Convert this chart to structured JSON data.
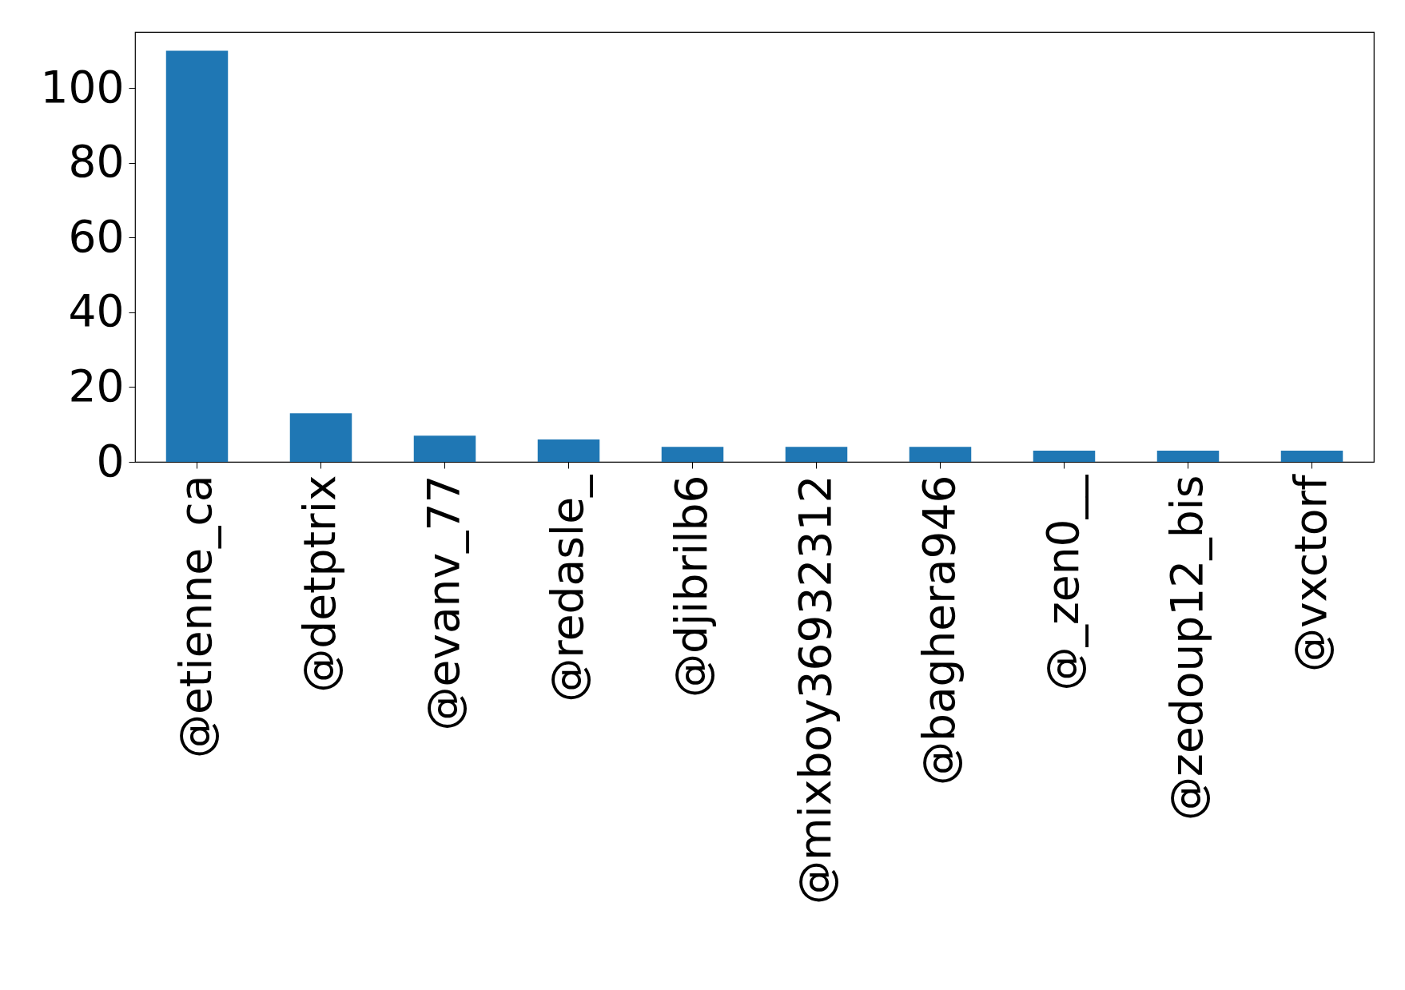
{
  "chart_data": {
    "type": "bar",
    "categories": [
      "@etienne_ca",
      "@detptrix",
      "@evanv_77",
      "@redasle_",
      "@djibrilb6",
      "@mixboy36932312",
      "@baghera946",
      "@_zen0__",
      "@zedoup12_bis",
      "@vxctorf"
    ],
    "values": [
      110,
      13,
      7,
      6,
      4,
      4,
      4,
      3,
      3,
      3
    ],
    "color": "#1f77b4",
    "ylim": [
      0,
      115
    ],
    "yticks": [
      0,
      20,
      40,
      60,
      80,
      100
    ],
    "grid": false
  }
}
